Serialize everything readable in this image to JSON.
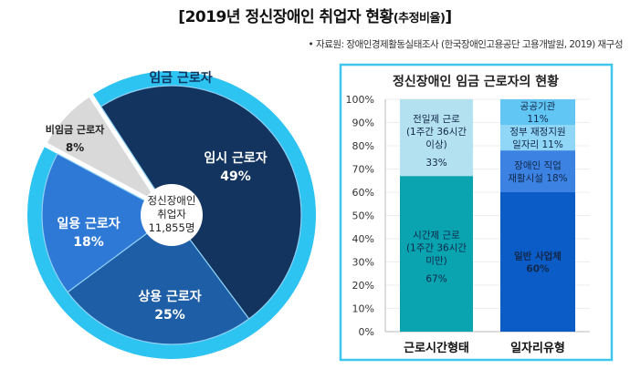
{
  "title": "[2019년 정신장애인 취업자 현황",
  "title_suffix": "(추정비율)",
  "title_close": "]",
  "source": "• 자료원: 장애인경제활동실태조사 (한국장애인고용공단 고용개발원, 2019) 재구성",
  "chart_data": [
    {
      "type": "pie",
      "ring_label": "임금 근로자",
      "center_label": [
        "정신장애인",
        "취업자",
        "11,855명"
      ],
      "slices": [
        {
          "label": "임시 근로자",
          "value": 49,
          "value_label": "49%",
          "color": "#12345e",
          "group": "임금 근로자"
        },
        {
          "label": "상용 근로자",
          "value": 25,
          "value_label": "25%",
          "color": "#1d5ea6",
          "group": "임금 근로자"
        },
        {
          "label": "일용 근로자",
          "value": 18,
          "value_label": "18%",
          "color": "#2e78d6",
          "group": "임금 근로자"
        },
        {
          "label": "비임금 근로자",
          "value": 8,
          "value_label": "8%",
          "color": "#d9d9d9",
          "group": ""
        }
      ],
      "ring_color": "#2ec4f2"
    },
    {
      "type": "bar",
      "stacked": true,
      "title": "정신장애인 임금 근로자의 현황",
      "categories": [
        "근로시간형태",
        "일자리유형"
      ],
      "ylim": [
        0,
        100
      ],
      "yticks": [
        "0%",
        "10%",
        "20%",
        "30%",
        "40%",
        "50%",
        "60%",
        "70%",
        "80%",
        "90%",
        "100%"
      ],
      "grid": true,
      "bars": [
        {
          "category": "근로시간형태",
          "segments": [
            {
              "lines": [
                "시간제 근로",
                "(1주간 36시간",
                "미만)",
                "67%"
              ],
              "value": 67,
              "color": "#0aa3b0"
            },
            {
              "lines": [
                "전일제 근로",
                "(1주간 36시간",
                "이상)",
                "33%"
              ],
              "value": 33,
              "color": "#b4e1ef"
            }
          ]
        },
        {
          "category": "일자리유형",
          "segments": [
            {
              "lines": [
                "일반 사업체",
                "60%"
              ],
              "value": 60,
              "color": "#0b5cc6"
            },
            {
              "lines": [
                "장애인 직업",
                "재활시설 18%"
              ],
              "value": 18,
              "color": "#3b82e2"
            },
            {
              "lines": [
                "정부 재정지원",
                "일자리  11%"
              ],
              "value": 11,
              "color": "#8fd6f7"
            },
            {
              "lines": [
                "공공기관",
                "11%"
              ],
              "value": 11,
              "color": "#62c6f4"
            }
          ]
        }
      ]
    }
  ]
}
